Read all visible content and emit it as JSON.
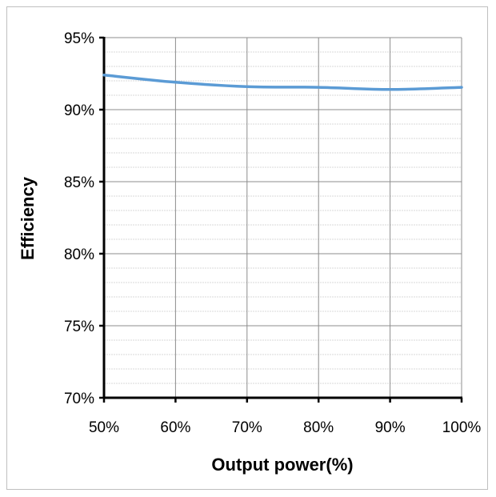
{
  "chart_data": {
    "type": "line",
    "title": "",
    "xlabel": "Output power(%)",
    "ylabel": "Efficiency",
    "x_tick_labels": [
      "50%",
      "60%",
      "70%",
      "80%",
      "90%",
      "100%"
    ],
    "y_tick_labels": [
      "70%",
      "75%",
      "80%",
      "85%",
      "90%",
      "95%"
    ],
    "xlim": [
      50,
      100
    ],
    "ylim": [
      70,
      95
    ],
    "x_major_step": 10,
    "y_major_step": 5,
    "y_minor_step": 1,
    "grid": true,
    "legend": "none",
    "series": [
      {
        "color": "#5b9bd5",
        "x": [
          50,
          60,
          70,
          80,
          90,
          100
        ],
        "y": [
          92.4,
          91.9,
          91.6,
          91.55,
          91.4,
          91.55
        ]
      }
    ]
  }
}
